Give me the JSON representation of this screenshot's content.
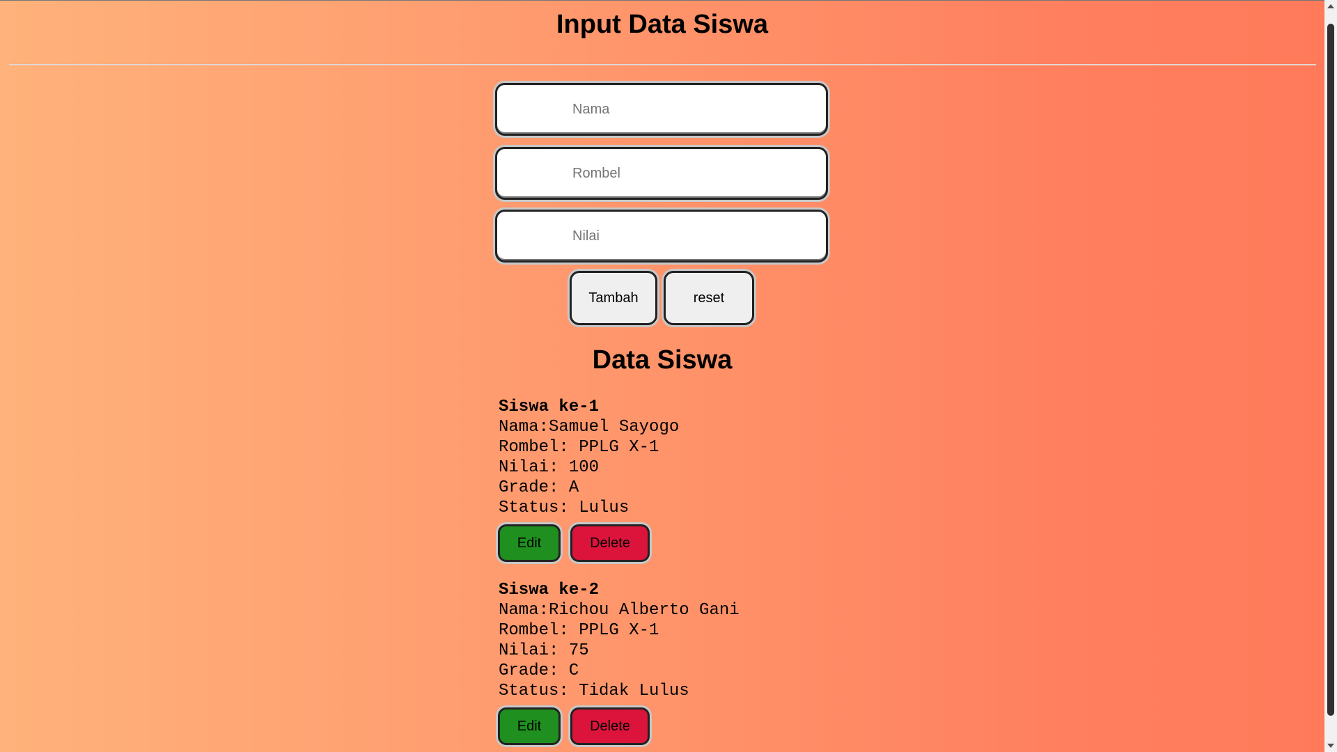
{
  "header": {
    "title": "Input Data Siswa"
  },
  "form": {
    "nama": {
      "placeholder": "Nama",
      "value": ""
    },
    "rombel": {
      "placeholder": "Rombel",
      "value": ""
    },
    "nilai": {
      "placeholder": "Nilai",
      "value": ""
    },
    "add_label": "Tambah",
    "reset_label": "reset"
  },
  "list": {
    "title": "Data Siswa",
    "students": [
      {
        "heading": "Siswa ke-1",
        "nama": "Nama:Samuel Sayogo",
        "rombel": "Rombel: PPLG X-1",
        "nilai": "Nilai: 100",
        "grade": "Grade: A",
        "status": "Status: Lulus",
        "edit": "Edit",
        "delete": "Delete"
      },
      {
        "heading": "Siswa ke-2",
        "nama": "Nama:Richou Alberto Gani",
        "rombel": "Rombel: PPLG X-1",
        "nilai": "Nilai: 75",
        "grade": "Grade: C",
        "status": "Status: Tidak Lulus",
        "edit": "Edit",
        "delete": "Delete"
      }
    ]
  },
  "colors": {
    "edit": "#1f8f1f",
    "delete": "#dc143c",
    "gradient_start": "#ffb27b",
    "gradient_end": "#ff7a5a"
  }
}
